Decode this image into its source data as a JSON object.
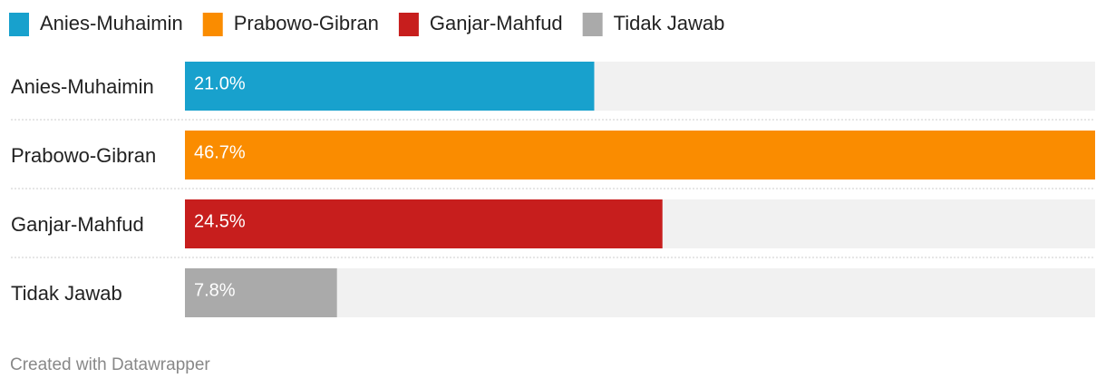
{
  "chart_data": {
    "type": "bar",
    "orientation": "horizontal",
    "categories": [
      "Anies-Muhaimin",
      "Prabowo-Gibran",
      "Ganjar-Mahfud",
      "Tidak Jawab"
    ],
    "values": [
      21.0,
      46.7,
      24.5,
      7.8
    ],
    "value_labels": [
      "21.0%",
      "46.7%",
      "24.5%",
      "7.8%"
    ],
    "colors": [
      "#18a1cd",
      "#fa8c00",
      "#c71e1d",
      "#aaaaaa"
    ],
    "xlim": [
      0,
      46.7
    ]
  },
  "footer": "Created with Datawrapper"
}
